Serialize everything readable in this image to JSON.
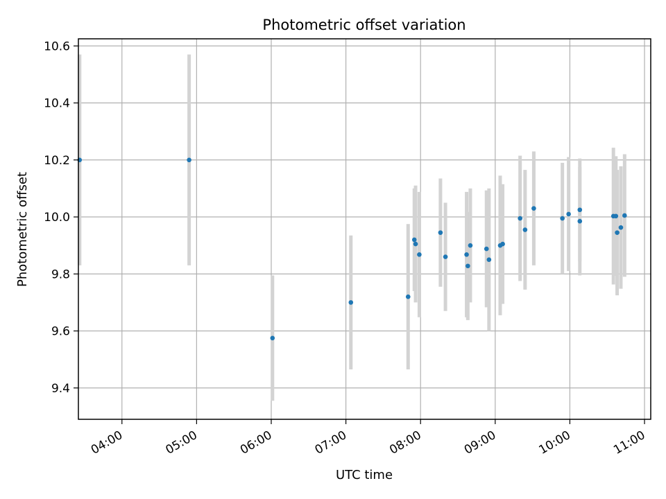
{
  "chart_data": {
    "type": "scatter",
    "title": "Photometric offset variation",
    "xlabel": "UTC time",
    "ylabel": "Photometric offset",
    "xlim": [
      "03:25",
      "11:05"
    ],
    "ylim": [
      9.29,
      10.625
    ],
    "x_ticks": [
      "04:00",
      "05:00",
      "06:00",
      "07:00",
      "08:00",
      "09:00",
      "10:00",
      "11:00"
    ],
    "y_ticks": [
      "9.4",
      "9.6",
      "9.8",
      "10.0",
      "10.2",
      "10.4",
      "10.6"
    ],
    "grid": true,
    "colors": {
      "points": "#1f77b4",
      "error_bars": "#d3d3d3",
      "grid": "#b0b0b0"
    },
    "points": [
      {
        "x": "03:26",
        "y": 10.2,
        "err": 0.37
      },
      {
        "x": "04:54",
        "y": 10.2,
        "err": 0.37
      },
      {
        "x": "06:01",
        "y": 9.575,
        "err": 0.22
      },
      {
        "x": "07:04",
        "y": 9.7,
        "err": 0.235
      },
      {
        "x": "07:50",
        "y": 9.72,
        "err": 0.255
      },
      {
        "x": "07:55",
        "y": 9.92,
        "err": 0.18
      },
      {
        "x": "07:56",
        "y": 9.905,
        "err": 0.205
      },
      {
        "x": "07:59",
        "y": 9.868,
        "err": 0.22
      },
      {
        "x": "08:16",
        "y": 9.945,
        "err": 0.19
      },
      {
        "x": "08:20",
        "y": 9.86,
        "err": 0.19
      },
      {
        "x": "08:37",
        "y": 9.868,
        "err": 0.22
      },
      {
        "x": "08:38",
        "y": 9.828,
        "err": 0.19
      },
      {
        "x": "08:40",
        "y": 9.9,
        "err": 0.2
      },
      {
        "x": "08:53",
        "y": 9.888,
        "err": 0.205
      },
      {
        "x": "08:55",
        "y": 9.85,
        "err": 0.25
      },
      {
        "x": "09:04",
        "y": 9.9,
        "err": 0.245
      },
      {
        "x": "09:06",
        "y": 9.905,
        "err": 0.21
      },
      {
        "x": "09:20",
        "y": 9.995,
        "err": 0.22
      },
      {
        "x": "09:24",
        "y": 9.955,
        "err": 0.21
      },
      {
        "x": "09:31",
        "y": 10.03,
        "err": 0.2
      },
      {
        "x": "09:54",
        "y": 9.995,
        "err": 0.195
      },
      {
        "x": "09:59",
        "y": 10.01,
        "err": 0.2
      },
      {
        "x": "10:08",
        "y": 10.025,
        "err": 0.18
      },
      {
        "x": "10:08",
        "y": 9.985,
        "err": 0.19
      },
      {
        "x": "10:35",
        "y": 10.003,
        "err": 0.24
      },
      {
        "x": "10:37",
        "y": 10.003,
        "err": 0.21
      },
      {
        "x": "10:38",
        "y": 9.945,
        "err": 0.22
      },
      {
        "x": "10:41",
        "y": 9.963,
        "err": 0.215
      },
      {
        "x": "10:44",
        "y": 10.005,
        "err": 0.215
      }
    ]
  }
}
